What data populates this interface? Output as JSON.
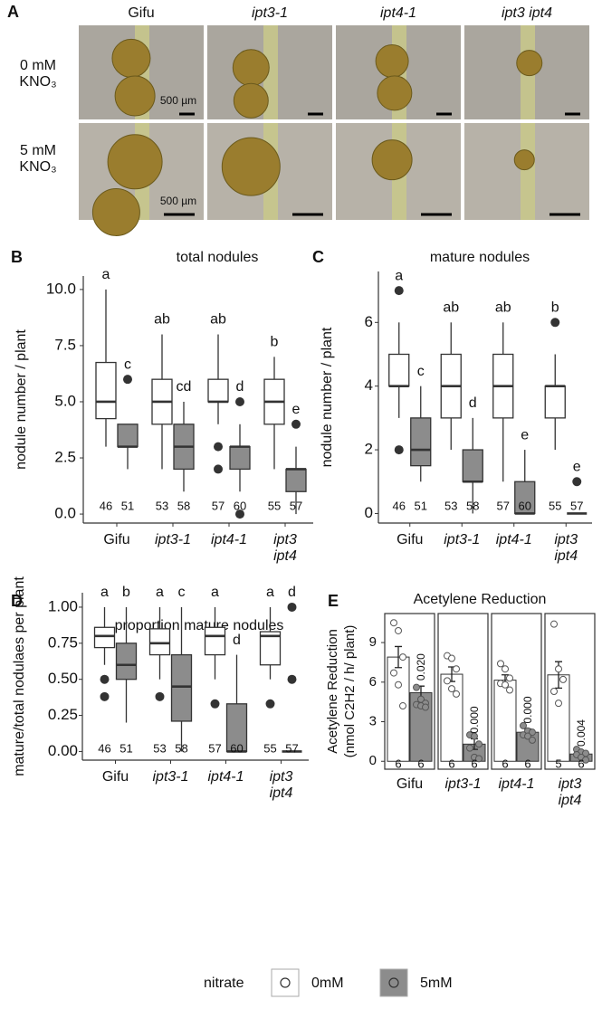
{
  "panel_a": {
    "label": "A",
    "columns": [
      "Gifu",
      "ipt3-1",
      "ipt4-1",
      "ipt3 ipt4"
    ],
    "rows": [
      "0 mM KNO₃",
      "5 mM KNO₃"
    ],
    "scale_bar": "500 µm"
  },
  "chart_data": [
    {
      "type": "box",
      "panel_label": "B",
      "title": "total nodules",
      "y_label": "nodule number / plant",
      "categories": [
        "Gifu",
        "ipt3-1",
        "ipt4-1",
        "ipt3 ipt4"
      ],
      "ylim": [
        -0.4,
        10.6
      ],
      "yticks": [
        {
          "value": 0,
          "label": "0.0"
        },
        2.5,
        {
          "value": 5,
          "label": "5.0"
        },
        7.5,
        {
          "value": 10,
          "label": "10.0"
        }
      ],
      "series": [
        {
          "color": "#ffffff",
          "letters": [
            "a",
            "ab",
            "ab",
            "b"
          ],
          "n": [
            46,
            53,
            57,
            55
          ],
          "boxes": [
            {
              "whislo": 3,
              "q1": 4.25,
              "med": 5,
              "q3": 6.75,
              "whishi": 10,
              "outliers": []
            },
            {
              "whislo": 2,
              "q1": 4,
              "med": 5,
              "q3": 6,
              "whishi": 8,
              "outliers": []
            },
            {
              "whislo": 4,
              "q1": 5,
              "med": 5,
              "q3": 6,
              "whishi": 8,
              "outliers": [
                3,
                2
              ]
            },
            {
              "whislo": 2,
              "q1": 4,
              "med": 5,
              "q3": 6,
              "whishi": 7,
              "outliers": []
            }
          ]
        },
        {
          "color": "#8c8c8c",
          "letters": [
            "c",
            "cd",
            "d",
            "e"
          ],
          "n": [
            51,
            58,
            60,
            57
          ],
          "boxes": [
            {
              "whislo": 2,
              "q1": 3,
              "med": 3,
              "q3": 4,
              "whishi": 4,
              "outliers": [
                6
              ]
            },
            {
              "whislo": 1,
              "q1": 2,
              "med": 3,
              "q3": 4,
              "whishi": 5,
              "outliers": []
            },
            {
              "whislo": 1,
              "q1": 2,
              "med": 3,
              "q3": 3,
              "whishi": 4,
              "outliers": [
                5,
                0
              ]
            },
            {
              "whislo": 0,
              "q1": 1,
              "med": 2,
              "q3": 2,
              "whishi": 3,
              "outliers": [
                4
              ]
            }
          ]
        }
      ]
    },
    {
      "type": "box",
      "panel_label": "C",
      "title": "mature nodules",
      "y_label": "nodule number / plant",
      "categories": [
        "Gifu",
        "ipt3-1",
        "ipt4-1",
        "ipt3 ipt4"
      ],
      "ylim": [
        -0.3,
        7.6
      ],
      "yticks": [
        0,
        2,
        4,
        6
      ],
      "series": [
        {
          "color": "#ffffff",
          "letters": [
            "a",
            "ab",
            "ab",
            "b"
          ],
          "n": [
            46,
            53,
            57,
            55
          ],
          "boxes": [
            {
              "whislo": 3,
              "q1": 4,
              "med": 4,
              "q3": 5,
              "whishi": 6,
              "outliers": [
                7,
                2
              ]
            },
            {
              "whislo": 2,
              "q1": 3,
              "med": 4,
              "q3": 5,
              "whishi": 6,
              "outliers": []
            },
            {
              "whislo": 1,
              "q1": 3,
              "med": 4,
              "q3": 5,
              "whishi": 6,
              "outliers": []
            },
            {
              "whislo": 2,
              "q1": 3,
              "med": 4,
              "q3": 4,
              "whishi": 5,
              "outliers": [
                6
              ]
            }
          ]
        },
        {
          "color": "#8c8c8c",
          "letters": [
            "c",
            "d",
            "e",
            "e"
          ],
          "n": [
            51,
            58,
            60,
            57
          ],
          "boxes": [
            {
              "whislo": 1,
              "q1": 1.5,
              "med": 2,
              "q3": 3,
              "whishi": 4,
              "outliers": []
            },
            {
              "whislo": 0,
              "q1": 1,
              "med": 1,
              "q3": 2,
              "whishi": 3,
              "outliers": []
            },
            {
              "whislo": 0,
              "q1": 0,
              "med": 0,
              "q3": 1,
              "whishi": 2,
              "outliers": []
            },
            {
              "whislo": 0,
              "q1": 0,
              "med": 0,
              "q3": 0,
              "whishi": 0,
              "outliers": [
                1
              ]
            }
          ]
        }
      ]
    },
    {
      "type": "box",
      "panel_label": "D",
      "title": "proportion mature nodules",
      "y_label": "mature/total nodulaes per plant",
      "categories": [
        "Gifu",
        "ipt3-1",
        "ipt4-1",
        "ipt3 ipt4"
      ],
      "ylim": [
        -0.06,
        1.1
      ],
      "yticks": [
        {
          "value": 0,
          "label": "0.00"
        },
        {
          "value": 0.25,
          "label": "0.25"
        },
        {
          "value": 0.5,
          "label": "0.50"
        },
        {
          "value": 0.75,
          "label": "0.75"
        },
        {
          "value": 1,
          "label": "1.00"
        }
      ],
      "series": [
        {
          "color": "#ffffff",
          "letters": [
            "a",
            "a",
            "a",
            "a"
          ],
          "n": [
            46,
            53,
            57,
            55
          ],
          "boxes": [
            {
              "whislo": 0.6,
              "q1": 0.72,
              "med": 0.8,
              "q3": 0.86,
              "whishi": 1,
              "outliers": [
                0.5,
                0.38
              ]
            },
            {
              "whislo": 0.5,
              "q1": 0.67,
              "med": 0.75,
              "q3": 0.85,
              "whishi": 1,
              "outliers": [
                0.38
              ]
            },
            {
              "whislo": 0.5,
              "q1": 0.67,
              "med": 0.8,
              "q3": 0.86,
              "whishi": 1,
              "outliers": [
                0.33
              ]
            },
            {
              "whislo": 0.5,
              "q1": 0.6,
              "med": 0.8,
              "q3": 0.83,
              "whishi": 1,
              "outliers": [
                0.33
              ]
            }
          ]
        },
        {
          "color": "#8c8c8c",
          "letters": [
            "b",
            "c",
            "d",
            "d"
          ],
          "n": [
            51,
            58,
            60,
            57
          ],
          "boxes": [
            {
              "whislo": 0.2,
              "q1": 0.5,
              "med": 0.6,
              "q3": 0.75,
              "whishi": 1,
              "outliers": []
            },
            {
              "whislo": 0,
              "q1": 0.21,
              "med": 0.45,
              "q3": 0.67,
              "whishi": 1,
              "outliers": []
            },
            {
              "whislo": 0,
              "q1": 0,
              "med": 0,
              "q3": 0.33,
              "whishi": 0.67,
              "outliers": []
            },
            {
              "whislo": 0,
              "q1": 0,
              "med": 0,
              "q3": 0,
              "whishi": 0,
              "outliers": [
                1,
                0.5
              ]
            }
          ]
        }
      ]
    },
    {
      "type": "bar",
      "panel_label": "E",
      "title": "Acetylene Reduction",
      "y_label": [
        "Acetylene Reduction",
        "(nmol C2H2 / h/ plant)"
      ],
      "categories": [
        "Gifu",
        "ipt3-1",
        "ipt4-1",
        "ipt3 ipt4"
      ],
      "ylim": [
        -0.6,
        11.2
      ],
      "yticks": [
        0,
        3,
        6,
        9
      ],
      "series": [
        {
          "name": "0mM",
          "color": "#ffffff",
          "values": [
            7.9,
            6.6,
            6.15,
            6.55
          ],
          "errors": [
            0.8,
            0.55,
            0.4,
            1.0
          ],
          "n": [
            6,
            6,
            6,
            5
          ],
          "points": [
            [
              10.5,
              9.9,
              7.9,
              6.7,
              5.8,
              4.2
            ],
            [
              8.0,
              7.8,
              7.0,
              6.1,
              5.5,
              5.1
            ],
            [
              7.4,
              7.0,
              6.3,
              5.9,
              5.8,
              5.4
            ],
            [
              10.4,
              7.0,
              6.2,
              5.3,
              4.4
            ]
          ]
        },
        {
          "name": "5mM",
          "color": "#8c8c8c",
          "values": [
            5.2,
            1.3,
            2.2,
            0.55
          ],
          "errors": [
            0.5,
            0.4,
            0.25,
            0.15
          ],
          "n": [
            6,
            6,
            6,
            6
          ],
          "p_labels": [
            "0.020",
            "0.000",
            "0.000",
            "0.004"
          ],
          "points": [
            [
              5.6,
              4.7,
              4.4,
              4.3,
              4.2,
              4.1
            ],
            [
              2.0,
              1.9,
              1.3,
              1.0,
              0.3,
              0.2
            ],
            [
              2.7,
              2.3,
              2.2,
              2.0,
              1.9,
              1.6
            ],
            [
              0.9,
              0.7,
              0.6,
              0.5,
              0.3,
              0.1
            ]
          ]
        }
      ]
    }
  ],
  "legend_title": "nitrate"
}
